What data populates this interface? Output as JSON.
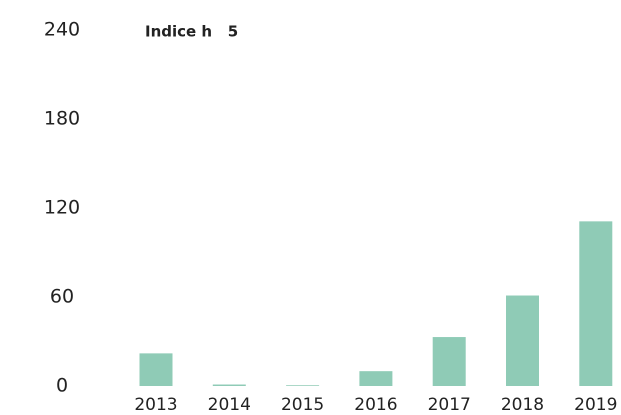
{
  "chart_data": {
    "type": "bar",
    "title": "Indice h   5",
    "categories": [
      "2013",
      "2014",
      "2015",
      "2016",
      "2017",
      "2018",
      "2019"
    ],
    "values": [
      22,
      1,
      0.5,
      10,
      33,
      61,
      111
    ],
    "color": "#8fcbb6",
    "ylim": [
      0,
      240
    ],
    "yticks": [
      0,
      60,
      120,
      180,
      240
    ],
    "grid": false
  }
}
